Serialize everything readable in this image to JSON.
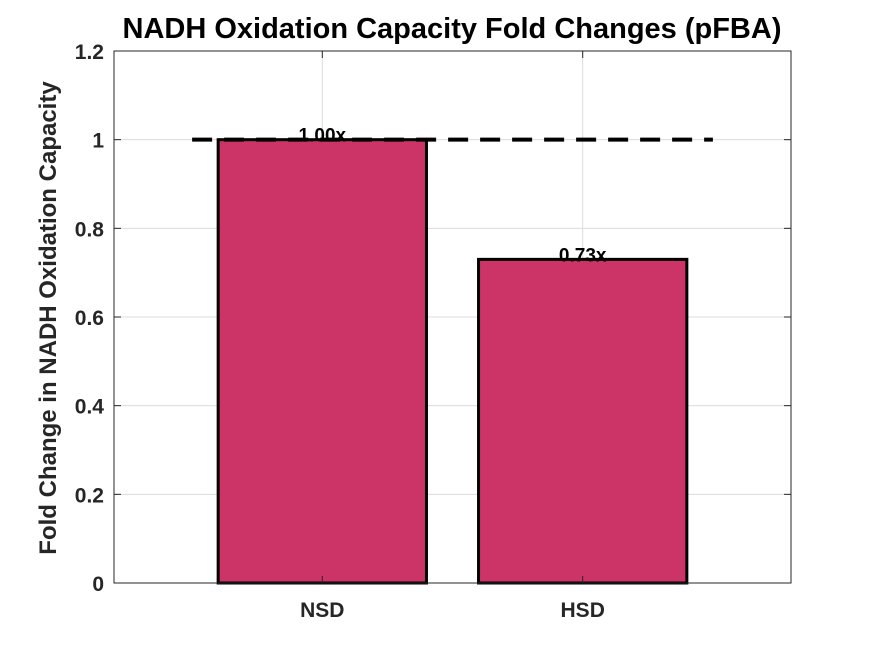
{
  "chart_data": {
    "type": "bar",
    "title": "NADH Oxidation Capacity Fold Changes (pFBA)",
    "xlabel": "",
    "ylabel": "Fold Change in NADH Oxidation Capacity",
    "categories": [
      "NSD",
      "HSD"
    ],
    "values": [
      1.0,
      0.73
    ],
    "data_labels": [
      "1.00x",
      "0.73x"
    ],
    "ylim": [
      0,
      1.2
    ],
    "yticks": [
      0,
      0.2,
      0.4,
      0.6,
      0.8,
      1,
      1.2
    ],
    "ytick_labels": [
      "0",
      "0.2",
      "0.4",
      "0.6",
      "0.8",
      "1",
      "1.2"
    ],
    "reference_line": {
      "y": 1,
      "style": "dashed",
      "color": "#000000"
    },
    "bar_color": "#CC3366",
    "grid": true,
    "legend": "none"
  }
}
